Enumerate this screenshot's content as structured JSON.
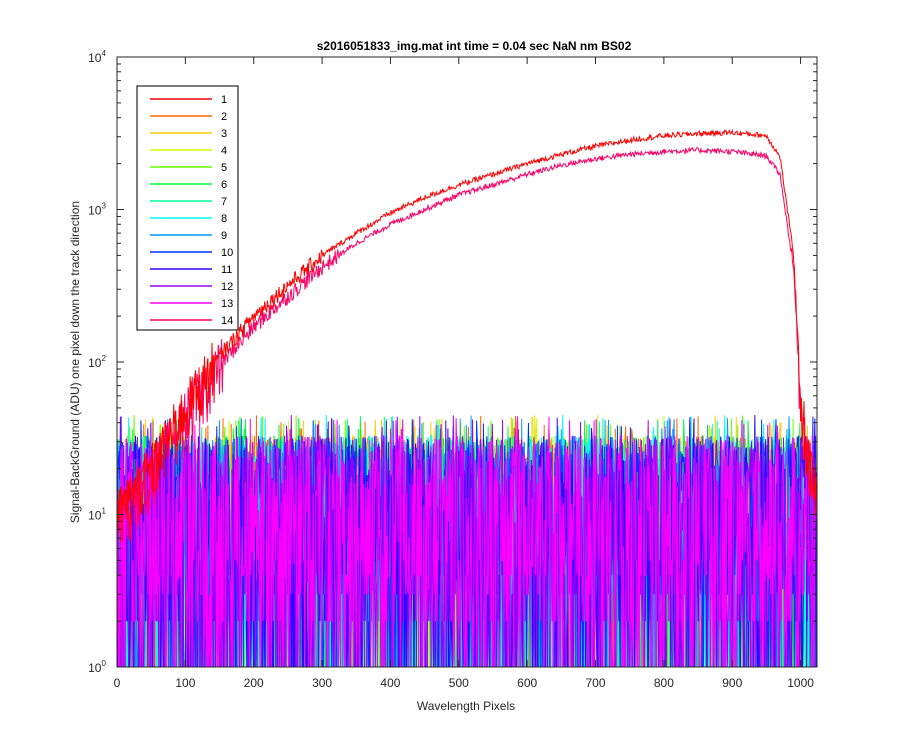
{
  "chart_data": {
    "type": "line",
    "title": "s2016051833_img.mat int time = 0.04 sec  NaN nm BS02",
    "xlabel": "Wavelength Pixels",
    "ylabel": "Signal-BackGround (ADU) one pixel down the track direction",
    "xlim": [
      0,
      1024
    ],
    "ylim": [
      1,
      10000
    ],
    "yscale": "log",
    "x_ticks": [
      0,
      100,
      200,
      300,
      400,
      500,
      600,
      700,
      800,
      900,
      1000
    ],
    "x_tick_labels": [
      "0",
      "100",
      "200",
      "300",
      "400",
      "500",
      "600",
      "700",
      "800",
      "900",
      "1000"
    ],
    "y_ticks": [
      1,
      10,
      100,
      1000,
      10000
    ],
    "y_tick_labels": [
      {
        "base": "10",
        "exp": "0"
      },
      {
        "base": "10",
        "exp": "1"
      },
      {
        "base": "10",
        "exp": "2"
      },
      {
        "base": "10",
        "exp": "3"
      },
      {
        "base": "10",
        "exp": "4"
      }
    ],
    "grid": false,
    "legend_position": "top-left",
    "series": [
      {
        "name": "1",
        "color": "#ff0000"
      },
      {
        "name": "2",
        "color": "#ff6600"
      },
      {
        "name": "3",
        "color": "#ffcc00"
      },
      {
        "name": "4",
        "color": "#ccff00"
      },
      {
        "name": "5",
        "color": "#66ff00"
      },
      {
        "name": "6",
        "color": "#00ff33"
      },
      {
        "name": "7",
        "color": "#00ff99"
      },
      {
        "name": "8",
        "color": "#00ffff"
      },
      {
        "name": "9",
        "color": "#0099ff"
      },
      {
        "name": "10",
        "color": "#0033ff"
      },
      {
        "name": "11",
        "color": "#3300ff"
      },
      {
        "name": "12",
        "color": "#9900ff"
      },
      {
        "name": "13",
        "color": "#ff00ff"
      },
      {
        "name": "14",
        "color": "#ff0066"
      }
    ],
    "signal_series_profile": {
      "x": [
        0,
        50,
        100,
        150,
        200,
        250,
        300,
        350,
        400,
        450,
        500,
        550,
        600,
        650,
        700,
        750,
        800,
        850,
        900,
        950,
        970,
        990,
        1000,
        1010,
        1020
      ],
      "series_1": [
        10,
        20,
        50,
        110,
        200,
        320,
        500,
        700,
        950,
        1200,
        1450,
        1700,
        2000,
        2300,
        2600,
        2850,
        3050,
        3150,
        3200,
        3050,
        2200,
        500,
        60,
        25,
        15
      ],
      "series_14": [
        9,
        18,
        45,
        95,
        170,
        270,
        420,
        600,
        800,
        1000,
        1250,
        1450,
        1700,
        1950,
        2150,
        2300,
        2400,
        2450,
        2400,
        2250,
        1700,
        400,
        55,
        25,
        15
      ]
    },
    "noise_series_range": [
      1,
      45
    ]
  }
}
